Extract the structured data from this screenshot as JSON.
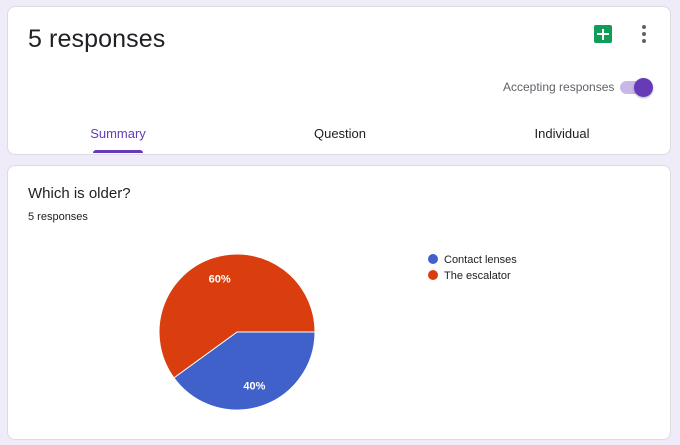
{
  "header": {
    "title": "5 responses",
    "sheets_icon": "google-sheets-icon",
    "more_icon": "more-vert-icon",
    "accepting_label": "Accepting responses",
    "accepting_on": true,
    "tabs": [
      {
        "label": "Summary",
        "active": true
      },
      {
        "label": "Question",
        "active": false
      },
      {
        "label": "Individual",
        "active": false
      }
    ]
  },
  "question": {
    "title": "Which is older?",
    "response_count": "5 responses"
  },
  "colors": {
    "accent": "#673ab7",
    "background": "#f0ebf8",
    "series_contact_lenses": "#3f61c9",
    "series_escalator": "#db3e0e"
  },
  "chart_data": {
    "type": "pie",
    "categories": [
      "Contact lenses",
      "The escalator"
    ],
    "values": [
      40,
      60
    ],
    "labels": [
      "40%",
      "60%"
    ],
    "colors": [
      "#3f61c9",
      "#db3e0e"
    ],
    "legend": "right"
  }
}
